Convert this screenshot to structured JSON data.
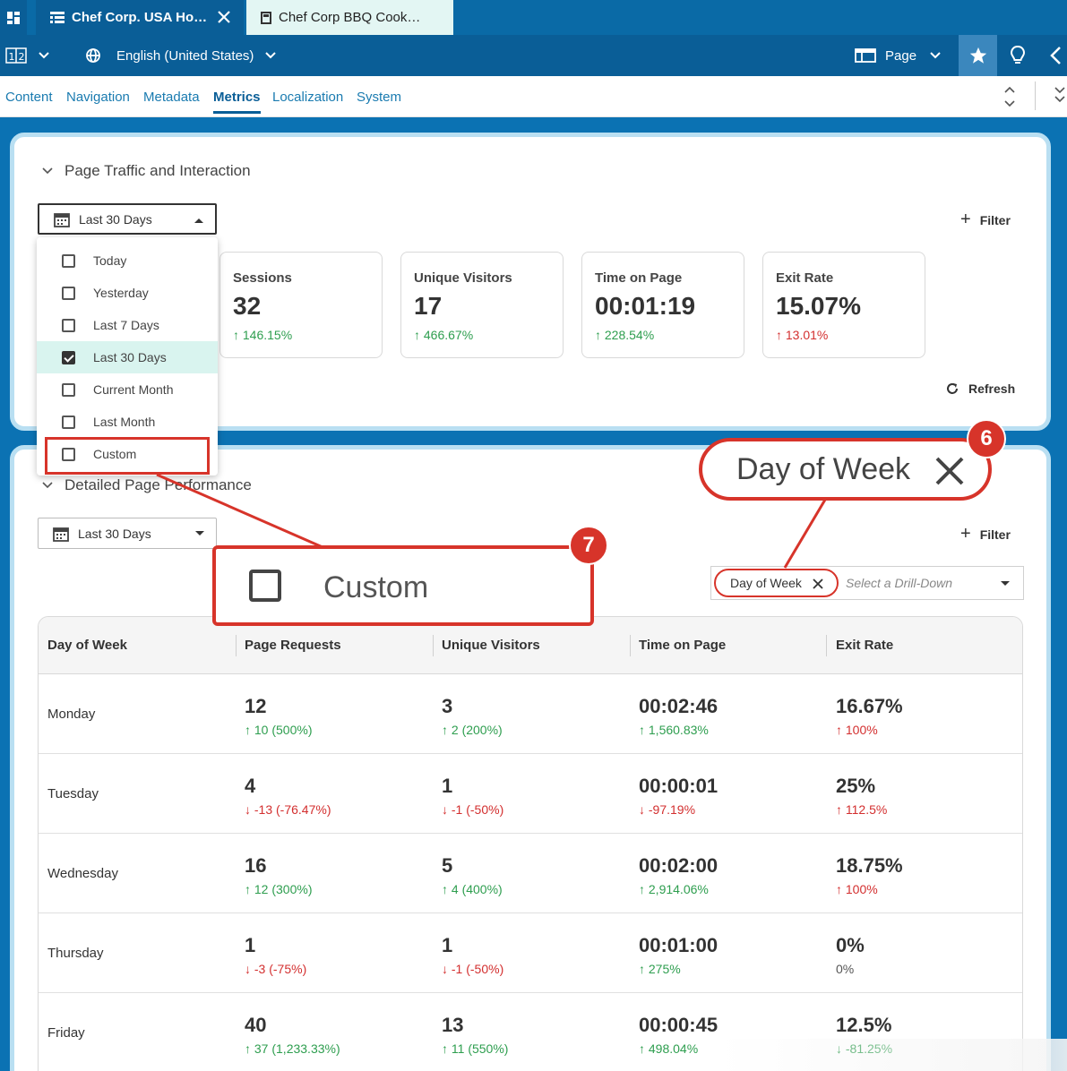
{
  "tabs": [
    {
      "label": "Chef Corp. USA Home..."
    },
    {
      "label": "Chef Corp BBQ Cooko..."
    }
  ],
  "toolbar": {
    "columns_label": "1|2",
    "language": "English (United States)",
    "page_label": "Page"
  },
  "nav": [
    "Content",
    "Navigation",
    "Metadata",
    "Metrics",
    "Localization",
    "System"
  ],
  "nav_active": "Metrics",
  "traffic": {
    "title": "Page Traffic and Interaction",
    "date_range": "Last 30 Days",
    "filter_label": "Filter",
    "refresh_label": "Refresh",
    "metrics": [
      {
        "label": "Sessions",
        "value": "32",
        "change": "146.15%",
        "dir": "up",
        "color": "green"
      },
      {
        "label": "Unique Visitors",
        "value": "17",
        "change": "466.67%",
        "dir": "up",
        "color": "green"
      },
      {
        "label": "Time on Page",
        "value": "00:01:19",
        "change": "228.54%",
        "dir": "up",
        "color": "green"
      },
      {
        "label": "Exit Rate",
        "value": "15.07%",
        "change": "13.01%",
        "dir": "up",
        "color": "red"
      }
    ]
  },
  "dropdown": {
    "options": [
      "Today",
      "Yesterday",
      "Last 7 Days",
      "Last 30 Days",
      "Current Month",
      "Last Month",
      "Custom"
    ],
    "selected": "Last 30 Days"
  },
  "performance": {
    "title": "Detailed Page Performance",
    "date_range": "Last 30 Days",
    "filter_label": "Filter",
    "chip_label": "Day of Week",
    "drill_placeholder": "Select a Drill-Down",
    "columns": [
      "Day of Week",
      "Page Requests",
      "Unique Visitors",
      "Time on Page",
      "Exit Rate"
    ],
    "rows": [
      {
        "day": "Monday",
        "cells": [
          {
            "value": "12",
            "change": "10 (500%)",
            "dir": "up",
            "color": "green"
          },
          {
            "value": "3",
            "change": "2 (200%)",
            "dir": "up",
            "color": "green"
          },
          {
            "value": "00:02:46",
            "change": "1,560.83%",
            "dir": "up",
            "color": "green"
          },
          {
            "value": "16.67%",
            "change": "100%",
            "dir": "up",
            "color": "red"
          }
        ]
      },
      {
        "day": "Tuesday",
        "cells": [
          {
            "value": "4",
            "change": "-13 (-76.47%)",
            "dir": "down",
            "color": "red"
          },
          {
            "value": "1",
            "change": "-1 (-50%)",
            "dir": "down",
            "color": "red"
          },
          {
            "value": "00:00:01",
            "change": "-97.19%",
            "dir": "down",
            "color": "red"
          },
          {
            "value": "25%",
            "change": "112.5%",
            "dir": "up",
            "color": "red"
          }
        ]
      },
      {
        "day": "Wednesday",
        "cells": [
          {
            "value": "16",
            "change": "12 (300%)",
            "dir": "up",
            "color": "green"
          },
          {
            "value": "5",
            "change": "4 (400%)",
            "dir": "up",
            "color": "green"
          },
          {
            "value": "00:02:00",
            "change": "2,914.06%",
            "dir": "up",
            "color": "green"
          },
          {
            "value": "18.75%",
            "change": "100%",
            "dir": "up",
            "color": "red"
          }
        ]
      },
      {
        "day": "Thursday",
        "cells": [
          {
            "value": "1",
            "change": "-3 (-75%)",
            "dir": "down",
            "color": "red"
          },
          {
            "value": "1",
            "change": "-1 (-50%)",
            "dir": "down",
            "color": "red"
          },
          {
            "value": "00:01:00",
            "change": "275%",
            "dir": "up",
            "color": "green"
          },
          {
            "value": "0%",
            "change": "0%",
            "dir": "none",
            "color": "grey"
          }
        ]
      },
      {
        "day": "Friday",
        "cells": [
          {
            "value": "40",
            "change": "37 (1,233.33%)",
            "dir": "up",
            "color": "green"
          },
          {
            "value": "13",
            "change": "11 (550%)",
            "dir": "up",
            "color": "green"
          },
          {
            "value": "00:00:45",
            "change": "498.04%",
            "dir": "up",
            "color": "green"
          },
          {
            "value": "12.5%",
            "change": "-81.25%",
            "dir": "down",
            "color": "green"
          }
        ]
      }
    ]
  },
  "callouts": [
    {
      "number": "6",
      "text": "Day of Week"
    },
    {
      "number": "7",
      "text": "Custom"
    }
  ],
  "colors": {
    "brand": "#0a5e97",
    "accent_red": "#d7342a",
    "positive": "#2e9e4f",
    "negative": "#d32f2f"
  }
}
